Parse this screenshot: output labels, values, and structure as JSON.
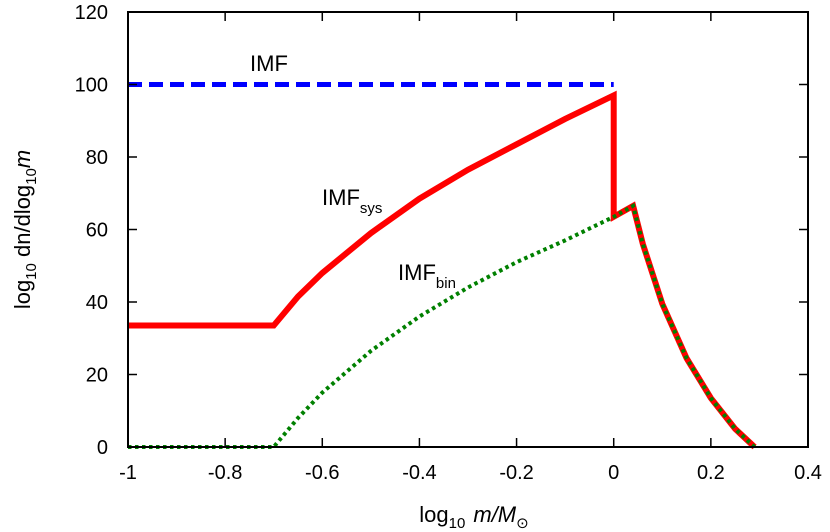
{
  "chart_data": {
    "type": "line",
    "title": "",
    "xlabel": {
      "main": "log",
      "sub": "10",
      "var": "m/M",
      "symbol": "⊙"
    },
    "ylabel": {
      "main": "log",
      "sub1": "10",
      "mid": " dn/dlog",
      "sub2": "10",
      "var": "m"
    },
    "xlim": [
      -1,
      0.4
    ],
    "ylim": [
      0,
      120
    ],
    "xticks": [
      -1,
      -0.8,
      -0.6,
      -0.4,
      -0.2,
      0,
      0.2,
      0.4
    ],
    "xtick_labels": [
      "-1",
      "-0.8",
      "-0.6",
      "-0.4",
      "-0.2",
      "0",
      "0.2",
      "0.4"
    ],
    "yticks": [
      0,
      20,
      40,
      60,
      80,
      100,
      120
    ],
    "ytick_labels": [
      "0",
      "20",
      "40",
      "60",
      "80",
      "100",
      "120"
    ],
    "grid": false,
    "series": [
      {
        "name": "IMF",
        "label_main": "IMF",
        "label_sub": "",
        "color": "#0000ff",
        "style": "dashed",
        "x": [
          -1,
          0
        ],
        "y": [
          100,
          100
        ]
      },
      {
        "name": "IMF_sys",
        "label_main": "IMF",
        "label_sub": "sys",
        "color": "#ff0000",
        "style": "solid",
        "x": [
          -1,
          -0.7,
          -0.65,
          -0.6,
          -0.5,
          -0.4,
          -0.3,
          -0.2,
          -0.1,
          0,
          0,
          0.04,
          0.06,
          0.1,
          0.15,
          0.2,
          0.25,
          0.29
        ],
        "y": [
          33.5,
          33.5,
          41.5,
          48,
          59,
          68.5,
          76.5,
          83.5,
          90.5,
          97,
          63.5,
          66.5,
          56,
          39.5,
          24.5,
          13.5,
          5,
          0
        ]
      },
      {
        "name": "IMF_bin",
        "label_main": "IMF",
        "label_sub": "bin",
        "color": "#008000",
        "style": "dotted",
        "x": [
          -1,
          -0.7,
          -0.65,
          -0.6,
          -0.5,
          -0.4,
          -0.3,
          -0.2,
          -0.1,
          0,
          0.04,
          0.06,
          0.1,
          0.15,
          0.2,
          0.25,
          0.29
        ],
        "y": [
          0,
          0,
          8,
          15,
          26.5,
          36,
          44,
          51,
          57,
          63.5,
          66.5,
          56,
          39.5,
          24.5,
          13.5,
          5,
          0
        ]
      }
    ]
  }
}
